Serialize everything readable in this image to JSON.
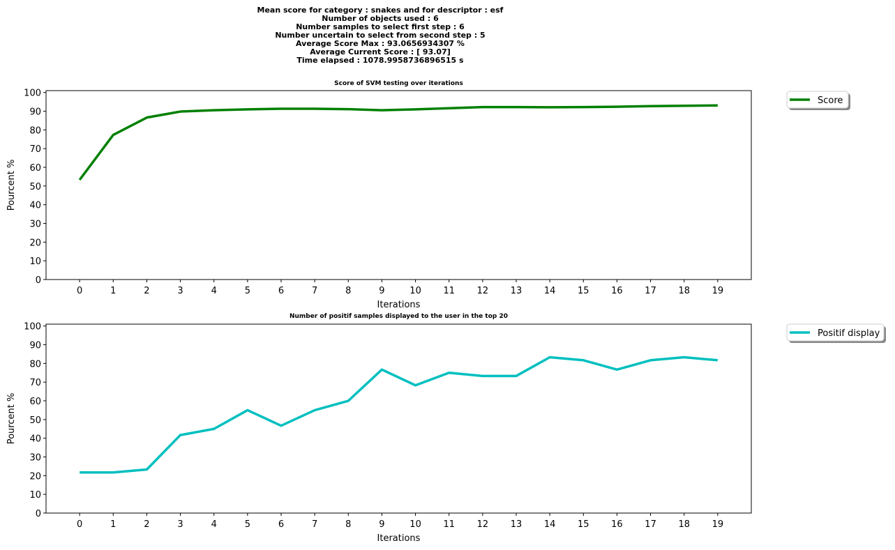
{
  "suptitle_lines": [
    "Mean score for category : snakes and for descriptor : esf",
    "Number of objects used : 6",
    "Number samples to select first step  : 6",
    "Number uncertain to select from second step  : 5",
    "Average Score Max : 93.0656934307 %",
    "Average Current Score : [ 93.07]",
    "Time elapsed : 1078.9958736896515 s"
  ],
  "chart_data": [
    {
      "type": "line",
      "title": "Score of SVM testing over iterations",
      "xlabel": "Iterations",
      "ylabel": "Pourcent %",
      "x": [
        0,
        1,
        2,
        3,
        4,
        5,
        6,
        7,
        8,
        9,
        10,
        11,
        12,
        13,
        14,
        15,
        16,
        17,
        18,
        19
      ],
      "xlim": [
        -1,
        20
      ],
      "ylim": [
        0,
        101
      ],
      "yticks": [
        0,
        10,
        20,
        30,
        40,
        50,
        60,
        70,
        80,
        90,
        100
      ],
      "grid": false,
      "legend_position": "outside-top-right",
      "series": [
        {
          "name": "Score",
          "color": "#008000",
          "values": [
            53.3,
            77.3,
            86.6,
            89.8,
            90.5,
            91.0,
            91.3,
            91.3,
            91.1,
            90.5,
            91.0,
            91.6,
            92.2,
            92.2,
            92.1,
            92.2,
            92.4,
            92.7,
            92.9,
            93.1
          ]
        }
      ]
    },
    {
      "type": "line",
      "title": "Number of positif samples displayed to the user in the top 20",
      "xlabel": "Iterations",
      "ylabel": "Pourcent %",
      "x": [
        0,
        1,
        2,
        3,
        4,
        5,
        6,
        7,
        8,
        9,
        10,
        11,
        12,
        13,
        14,
        15,
        16,
        17,
        18,
        19
      ],
      "xlim": [
        -1,
        20
      ],
      "ylim": [
        0,
        101
      ],
      "yticks": [
        0,
        10,
        20,
        30,
        40,
        50,
        60,
        70,
        80,
        90,
        100
      ],
      "grid": false,
      "legend_position": "outside-top-right",
      "series": [
        {
          "name": "Positif display",
          "color": "#00BFBF",
          "values": [
            21.7,
            21.7,
            23.3,
            41.7,
            45.0,
            55.0,
            46.7,
            55.0,
            60.0,
            76.7,
            68.3,
            75.0,
            73.3,
            73.3,
            83.3,
            81.7,
            76.7,
            81.7,
            83.3,
            81.7
          ]
        }
      ]
    }
  ]
}
